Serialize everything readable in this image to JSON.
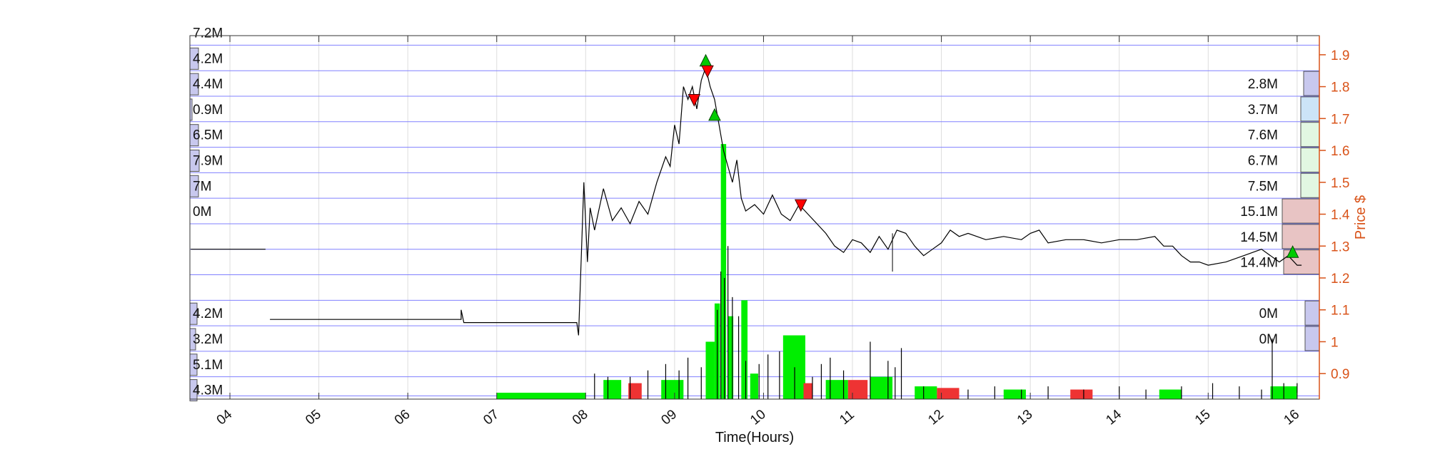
{
  "colors": {
    "price_axis": "#d95319",
    "grid_h": "#8080ff",
    "grid_v": "#dddddd",
    "price_line": "#000000",
    "volume": "#000000",
    "buy_volume": "#00ee00",
    "sell_volume": "#ee3333",
    "buy_marker": "#00cc00",
    "sell_marker": "#ff0000",
    "profile_blue": "#c8c8ee",
    "profile_lightblue": "#cce4f7",
    "profile_lightgreen": "#e2f7e2",
    "profile_pink": "#e8c4c4"
  },
  "chart_data": {
    "type": "line",
    "xlabel": "Time(Hours)",
    "ylabel": "Price $",
    "xlim": [
      3.55,
      16.25
    ],
    "ylim": [
      0.82,
      1.96
    ],
    "x_ticks": [
      {
        "v": 4,
        "label": "04"
      },
      {
        "v": 5,
        "label": "05"
      },
      {
        "v": 6,
        "label": "06"
      },
      {
        "v": 7,
        "label": "07"
      },
      {
        "v": 8,
        "label": "08"
      },
      {
        "v": 9,
        "label": "09"
      },
      {
        "v": 10,
        "label": "10"
      },
      {
        "v": 11,
        "label": "11"
      },
      {
        "v": 12,
        "label": "12"
      },
      {
        "v": 13,
        "label": "13"
      },
      {
        "v": 14,
        "label": "14"
      },
      {
        "v": 15,
        "label": "15"
      },
      {
        "v": 16,
        "label": "16"
      }
    ],
    "y_ticks": [
      {
        "v": 0.9,
        "label": "0.9"
      },
      {
        "v": 1.0,
        "label": "1"
      },
      {
        "v": 1.1,
        "label": "1.1"
      },
      {
        "v": 1.2,
        "label": "1.2"
      },
      {
        "v": 1.3,
        "label": "1.3"
      },
      {
        "v": 1.4,
        "label": "1.4"
      },
      {
        "v": 1.5,
        "label": "1.5"
      },
      {
        "v": 1.6,
        "label": "1.6"
      },
      {
        "v": 1.7,
        "label": "1.7"
      },
      {
        "v": 1.8,
        "label": "1.8"
      },
      {
        "v": 1.9,
        "label": "1.9"
      }
    ],
    "price_levels": [
      1.93,
      1.85,
      1.77,
      1.69,
      1.61,
      1.53,
      1.45,
      1.37,
      1.29,
      1.21,
      1.13,
      1.05,
      0.97,
      0.89,
      0.83
    ],
    "price_series": [
      [
        3.56,
        1.29
      ],
      [
        4.4,
        1.29
      ],
      [
        4.45,
        1.07
      ],
      [
        6.6,
        1.07
      ],
      [
        6.6,
        1.1
      ],
      [
        6.63,
        1.06
      ],
      [
        7.9,
        1.06
      ],
      [
        7.92,
        1.02
      ],
      [
        7.98,
        1.5
      ],
      [
        8.02,
        1.25
      ],
      [
        8.05,
        1.42
      ],
      [
        8.1,
        1.35
      ],
      [
        8.2,
        1.48
      ],
      [
        8.3,
        1.38
      ],
      [
        8.4,
        1.42
      ],
      [
        8.5,
        1.37
      ],
      [
        8.6,
        1.44
      ],
      [
        8.7,
        1.4
      ],
      [
        8.8,
        1.5
      ],
      [
        8.9,
        1.58
      ],
      [
        8.95,
        1.55
      ],
      [
        9.0,
        1.68
      ],
      [
        9.05,
        1.62
      ],
      [
        9.1,
        1.8
      ],
      [
        9.15,
        1.76
      ],
      [
        9.2,
        1.8
      ],
      [
        9.25,
        1.73
      ],
      [
        9.3,
        1.82
      ],
      [
        9.35,
        1.86
      ],
      [
        9.4,
        1.8
      ],
      [
        9.45,
        1.76
      ],
      [
        9.5,
        1.68
      ],
      [
        9.55,
        1.6
      ],
      [
        9.6,
        1.55
      ],
      [
        9.65,
        1.5
      ],
      [
        9.7,
        1.57
      ],
      [
        9.75,
        1.45
      ],
      [
        9.8,
        1.41
      ],
      [
        9.9,
        1.43
      ],
      [
        10.0,
        1.4
      ],
      [
        10.1,
        1.46
      ],
      [
        10.2,
        1.4
      ],
      [
        10.3,
        1.38
      ],
      [
        10.4,
        1.43
      ],
      [
        10.5,
        1.4
      ],
      [
        10.6,
        1.37
      ],
      [
        10.7,
        1.34
      ],
      [
        10.8,
        1.3
      ],
      [
        10.9,
        1.28
      ],
      [
        11.0,
        1.32
      ],
      [
        11.1,
        1.31
      ],
      [
        11.2,
        1.28
      ],
      [
        11.3,
        1.33
      ],
      [
        11.4,
        1.29
      ],
      [
        11.5,
        1.35
      ],
      [
        11.6,
        1.34
      ],
      [
        11.7,
        1.3
      ],
      [
        11.8,
        1.27
      ],
      [
        11.9,
        1.29
      ],
      [
        12.0,
        1.31
      ],
      [
        12.1,
        1.35
      ],
      [
        12.2,
        1.33
      ],
      [
        12.3,
        1.34
      ],
      [
        12.5,
        1.32
      ],
      [
        12.7,
        1.33
      ],
      [
        12.9,
        1.32
      ],
      [
        13.0,
        1.34
      ],
      [
        13.1,
        1.35
      ],
      [
        13.2,
        1.31
      ],
      [
        13.4,
        1.32
      ],
      [
        13.6,
        1.32
      ],
      [
        13.8,
        1.31
      ],
      [
        14.0,
        1.32
      ],
      [
        14.2,
        1.32
      ],
      [
        14.4,
        1.33
      ],
      [
        14.5,
        1.3
      ],
      [
        14.6,
        1.3
      ],
      [
        14.7,
        1.27
      ],
      [
        14.8,
        1.25
      ],
      [
        14.9,
        1.25
      ],
      [
        15.0,
        1.24
      ],
      [
        15.2,
        1.25
      ],
      [
        15.4,
        1.27
      ],
      [
        15.6,
        1.29
      ],
      [
        15.7,
        1.27
      ],
      [
        15.8,
        1.25
      ],
      [
        15.9,
        1.27
      ],
      [
        16.0,
        1.24
      ],
      [
        16.05,
        1.24
      ]
    ],
    "spikes": [
      [
        11.45,
        1.22,
        1.34
      ]
    ],
    "buy_markers": [
      [
        9.35,
        1.88
      ],
      [
        9.45,
        1.71
      ],
      [
        15.95,
        1.28
      ]
    ],
    "sell_markers": [
      [
        9.22,
        1.76
      ],
      [
        9.37,
        1.85
      ],
      [
        10.42,
        1.43
      ]
    ],
    "volume_bars": [
      {
        "x": 7.0,
        "w": 1.0,
        "top": 0.84,
        "c": "buy"
      },
      {
        "x": 8.2,
        "w": 0.2,
        "top": 0.88,
        "c": "buy"
      },
      {
        "x": 8.48,
        "w": 0.15,
        "top": 0.87,
        "c": "sell"
      },
      {
        "x": 8.85,
        "w": 0.25,
        "top": 0.88,
        "c": "buy"
      },
      {
        "x": 9.35,
        "w": 0.1,
        "top": 1.0,
        "c": "buy"
      },
      {
        "x": 9.45,
        "w": 0.06,
        "top": 1.12,
        "c": "buy"
      },
      {
        "x": 9.52,
        "w": 0.06,
        "top": 1.62,
        "c": "buy"
      },
      {
        "x": 9.6,
        "w": 0.06,
        "top": 1.08,
        "c": "buy"
      },
      {
        "x": 9.75,
        "w": 0.07,
        "top": 1.13,
        "c": "buy"
      },
      {
        "x": 9.85,
        "w": 0.09,
        "top": 0.9,
        "c": "buy"
      },
      {
        "x": 10.22,
        "w": 0.25,
        "top": 1.02,
        "c": "buy"
      },
      {
        "x": 10.45,
        "w": 0.1,
        "top": 0.87,
        "c": "sell"
      },
      {
        "x": 10.7,
        "w": 0.25,
        "top": 0.88,
        "c": "buy"
      },
      {
        "x": 10.95,
        "w": 0.22,
        "top": 0.88,
        "c": "sell"
      },
      {
        "x": 11.2,
        "w": 0.25,
        "top": 0.89,
        "c": "buy"
      },
      {
        "x": 11.7,
        "w": 0.25,
        "top": 0.86,
        "c": "buy"
      },
      {
        "x": 11.95,
        "w": 0.25,
        "top": 0.855,
        "c": "sell"
      },
      {
        "x": 12.7,
        "w": 0.25,
        "top": 0.85,
        "c": "buy"
      },
      {
        "x": 13.45,
        "w": 0.25,
        "top": 0.85,
        "c": "sell"
      },
      {
        "x": 14.45,
        "w": 0.25,
        "top": 0.85,
        "c": "buy"
      },
      {
        "x": 15.7,
        "w": 0.3,
        "top": 0.86,
        "c": "buy"
      }
    ],
    "volume_spikes": [
      [
        8.1,
        0.9
      ],
      [
        8.25,
        0.89
      ],
      [
        8.5,
        0.89
      ],
      [
        8.7,
        0.91
      ],
      [
        8.9,
        0.93
      ],
      [
        9.05,
        0.91
      ],
      [
        9.15,
        0.95
      ],
      [
        9.3,
        0.92
      ],
      [
        9.48,
        1.1
      ],
      [
        9.52,
        1.22
      ],
      [
        9.56,
        1.2
      ],
      [
        9.6,
        1.3
      ],
      [
        9.65,
        1.14
      ],
      [
        9.72,
        1.08
      ],
      [
        9.8,
        0.94
      ],
      [
        9.95,
        0.93
      ],
      [
        10.05,
        0.96
      ],
      [
        10.18,
        0.97
      ],
      [
        10.35,
        0.92
      ],
      [
        10.55,
        0.89
      ],
      [
        10.65,
        0.93
      ],
      [
        10.75,
        0.95
      ],
      [
        10.9,
        0.91
      ],
      [
        11.2,
        1.0
      ],
      [
        11.4,
        0.94
      ],
      [
        11.48,
        0.92
      ],
      [
        11.55,
        0.98
      ],
      [
        11.8,
        0.86
      ],
      [
        12.3,
        0.85
      ],
      [
        12.6,
        0.86
      ],
      [
        12.9,
        0.85
      ],
      [
        13.2,
        0.86
      ],
      [
        13.6,
        0.85
      ],
      [
        14.0,
        0.86
      ],
      [
        14.3,
        0.85
      ],
      [
        14.7,
        0.86
      ],
      [
        15.05,
        0.87
      ],
      [
        15.35,
        0.86
      ],
      [
        15.6,
        0.85
      ],
      [
        15.72,
        1.01
      ],
      [
        15.85,
        0.87
      ],
      [
        16.0,
        0.87
      ]
    ],
    "left_profile": [
      {
        "label": "7.2M",
        "y": 1.97,
        "w": 0
      },
      {
        "label": "4.2M",
        "y": 1.89,
        "w": 12
      },
      {
        "label": "4.4M",
        "y": 1.81,
        "w": 12
      },
      {
        "label": "0.9M",
        "y": 1.73,
        "w": 3
      },
      {
        "label": "6.5M",
        "y": 1.65,
        "w": 12
      },
      {
        "label": "7.9M",
        "y": 1.57,
        "w": 13
      },
      {
        "label": "7M",
        "y": 1.49,
        "w": 12
      },
      {
        "label": "0M",
        "y": 1.41,
        "w": 0
      },
      {
        "label": "4.2M",
        "y": 1.09,
        "w": 10
      },
      {
        "label": "3.2M",
        "y": 1.01,
        "w": 8
      },
      {
        "label": "5.1M",
        "y": 0.93,
        "w": 10
      },
      {
        "label": "4.3M",
        "y": 0.85,
        "w": 10
      }
    ],
    "right_profile": [
      {
        "label": "2.8M",
        "y": 1.81,
        "w": 22,
        "c": "blue"
      },
      {
        "label": "3.7M",
        "y": 1.73,
        "w": 26,
        "c": "lightblue"
      },
      {
        "label": "7.6M",
        "y": 1.65,
        "w": 26,
        "c": "lightgreen"
      },
      {
        "label": "6.7M",
        "y": 1.57,
        "w": 26,
        "c": "lightgreen"
      },
      {
        "label": "7.5M",
        "y": 1.49,
        "w": 26,
        "c": "lightgreen"
      },
      {
        "label": "15.1M",
        "y": 1.41,
        "w": 52,
        "c": "pink"
      },
      {
        "label": "14.5M",
        "y": 1.33,
        "w": 52,
        "c": "pink"
      },
      {
        "label": "14.4M",
        "y": 1.25,
        "w": 50,
        "c": "pink"
      },
      {
        "label": "0M",
        "y": 1.09,
        "w": 20,
        "c": "blue"
      },
      {
        "label": "0M",
        "y": 1.01,
        "w": 20,
        "c": "blue"
      }
    ]
  }
}
